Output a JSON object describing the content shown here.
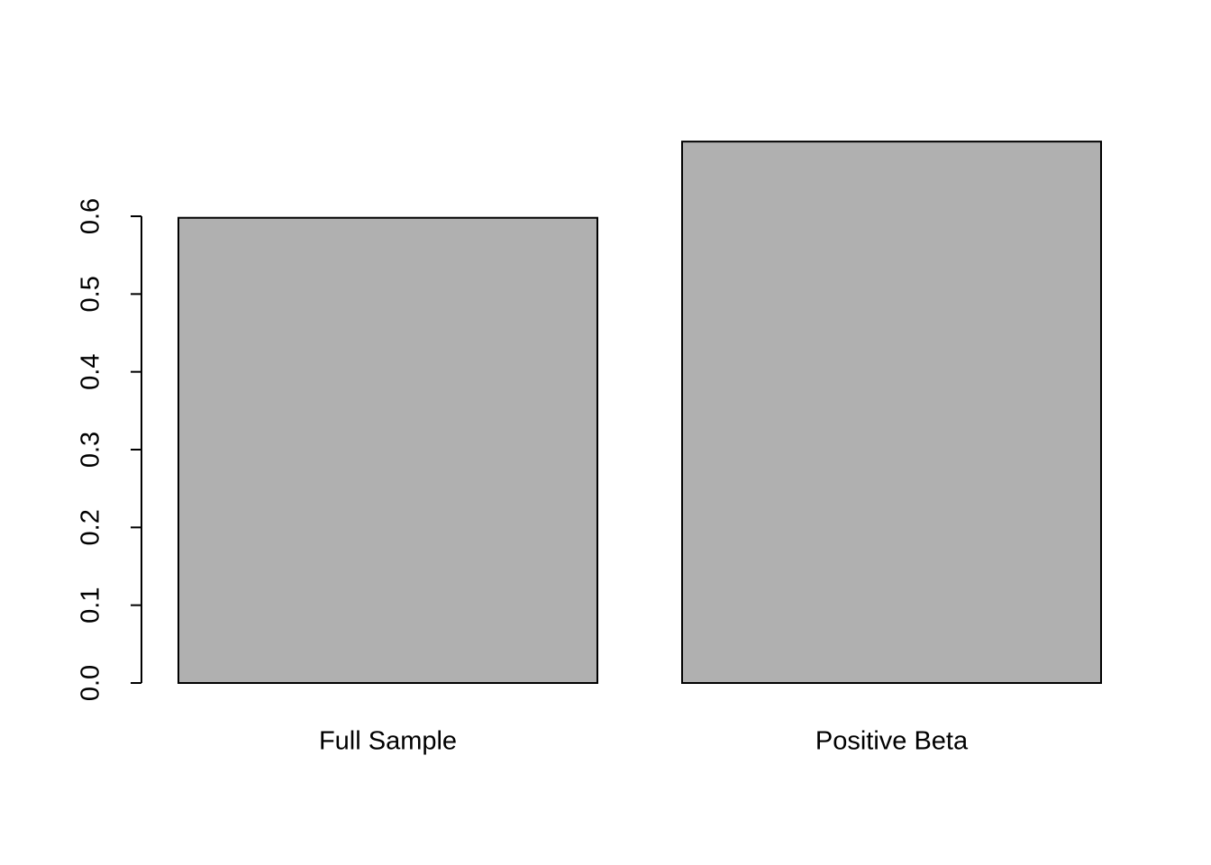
{
  "chart_data": {
    "type": "bar",
    "categories": [
      "Full Sample",
      "Positive Beta"
    ],
    "values": [
      0.598,
      0.696
    ],
    "color": "#b0b0b0",
    "ylim": [
      0,
      0.72
    ],
    "yticks": [
      {
        "value": 0,
        "label": "0.0"
      },
      0.1,
      0.2,
      0.3,
      0.4,
      0.5,
      0.6
    ]
  }
}
